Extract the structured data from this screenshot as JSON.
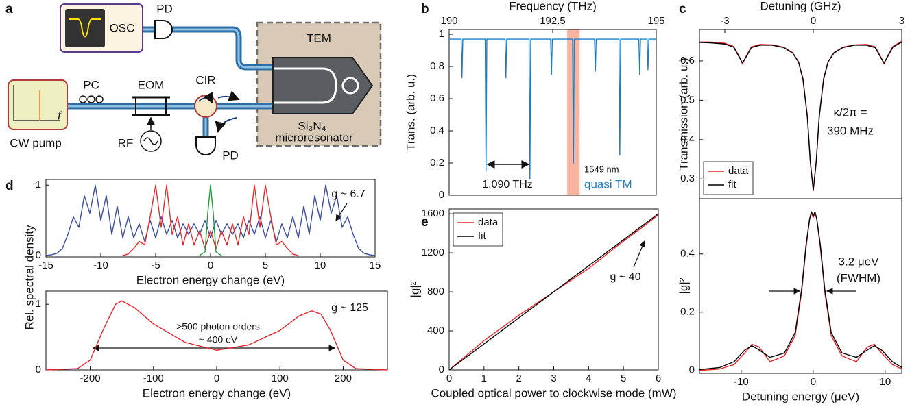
{
  "panel_labels": [
    "a",
    "b",
    "c",
    "d",
    "e"
  ],
  "diagram": {
    "pd_top": "PD",
    "osc": "OSC",
    "tem": "TEM",
    "pc": "PC",
    "eom": "EOM",
    "cir": "CIR",
    "material": "Si₃N₄",
    "resonator": "microresonator",
    "pump_axis": "f",
    "pump": "CW pump",
    "rf": "RF",
    "pd_bottom": "PD"
  },
  "chart_data": [
    {
      "type": "line",
      "x_label": "Frequency (THz)",
      "y_label": "Trans. (arb. u.)",
      "x_axis_side": "top",
      "xlim": [
        190,
        195
      ],
      "xticks": [
        190,
        192.5,
        195
      ],
      "ylim": [
        0,
        1.03
      ],
      "yticks": [
        0,
        0.2,
        0.4,
        0.6,
        0.8,
        1
      ],
      "highlight_x": [
        192.85,
        193.15
      ],
      "highlight_color": "#f6b5a0",
      "annotations": [
        "1.090 THz",
        "1549 nm",
        "quasi TM"
      ],
      "series": [
        {
          "color": "#1f7dc0",
          "x": [
            190,
            190.29,
            190.31,
            190.33,
            190.87,
            190.89,
            190.91,
            191.35,
            191.37,
            191.39,
            191.93,
            191.95,
            191.97,
            192.45,
            192.47,
            192.49,
            192.98,
            193.0,
            193.02,
            193.51,
            193.53,
            193.55,
            194.1,
            194.12,
            194.14,
            194.58,
            194.6,
            194.62,
            194.78,
            194.8,
            194.82,
            195
          ],
          "values": [
            0.97,
            0.97,
            0.73,
            0.97,
            0.97,
            0.15,
            0.97,
            0.97,
            0.73,
            0.97,
            0.97,
            0.1,
            0.97,
            0.97,
            0.75,
            0.97,
            0.97,
            0.2,
            0.97,
            0.97,
            0.77,
            0.97,
            0.97,
            0.25,
            0.97,
            0.97,
            0.75,
            0.97,
            0.97,
            0.78,
            0.97,
            0.97
          ]
        }
      ]
    },
    {
      "type": "line",
      "x_label": "Detuning (GHz)",
      "y_label": "Transmission (arb. u.)",
      "x_axis_side": "top",
      "xlim": [
        -3.86,
        3
      ],
      "xticks": [
        -3,
        0,
        3
      ],
      "ylim": [
        0.25,
        0.68
      ],
      "yticks": [
        0.3,
        0.4,
        0.5,
        0.6
      ],
      "annotations": [
        "κ/2π =",
        "390 MHz"
      ],
      "legend": "lower left",
      "series": [
        {
          "name": "data",
          "color": "#e8232a",
          "x": [
            -3.86,
            -3.5,
            -3,
            -2.7,
            -2.5,
            -2.4,
            -2.3,
            -2.1,
            -1.8,
            -1.4,
            -1,
            -0.7,
            -0.5,
            -0.35,
            -0.2,
            -0.1,
            0,
            0.1,
            0.2,
            0.35,
            0.5,
            0.7,
            1,
            1.4,
            1.8,
            2.1,
            2.3,
            2.4,
            2.5,
            2.7,
            3
          ],
          "values": [
            0.648,
            0.648,
            0.645,
            0.637,
            0.61,
            0.592,
            0.609,
            0.636,
            0.642,
            0.641,
            0.635,
            0.621,
            0.598,
            0.556,
            0.46,
            0.346,
            0.27,
            0.346,
            0.46,
            0.556,
            0.598,
            0.621,
            0.635,
            0.641,
            0.642,
            0.636,
            0.609,
            0.592,
            0.61,
            0.637,
            0.65
          ]
        },
        {
          "name": "fit",
          "color": "#000000",
          "x": [
            -3.86,
            -3.5,
            -3,
            -2.7,
            -2.5,
            -2.4,
            -2.3,
            -2.1,
            -1.8,
            -1.4,
            -1,
            -0.7,
            -0.5,
            -0.35,
            -0.2,
            -0.1,
            0,
            0.1,
            0.2,
            0.35,
            0.5,
            0.7,
            1,
            1.4,
            1.8,
            2.1,
            2.3,
            2.4,
            2.5,
            2.7,
            3
          ],
          "values": [
            0.647,
            0.646,
            0.643,
            0.635,
            0.608,
            0.595,
            0.607,
            0.634,
            0.64,
            0.64,
            0.634,
            0.62,
            0.597,
            0.553,
            0.456,
            0.342,
            0.272,
            0.342,
            0.456,
            0.553,
            0.597,
            0.62,
            0.634,
            0.64,
            0.64,
            0.634,
            0.607,
            0.595,
            0.608,
            0.635,
            0.648
          ]
        }
      ]
    },
    {
      "type": "line",
      "x_label": "Detuning energy (μeV)",
      "y_label": "|g|²",
      "xlim": [
        -15.8,
        12.3
      ],
      "xticks": [
        -10,
        0,
        10
      ],
      "ylim": [
        -0.01,
        0.59
      ],
      "yticks": [
        0,
        0.2,
        0.4
      ],
      "annotations": [
        "3.2 μeV",
        "(FWHM)"
      ],
      "series": [
        {
          "color": "#e8232a",
          "x": [
            -15.8,
            -13,
            -11,
            -9.5,
            -8.5,
            -7.5,
            -6,
            -4,
            -2.5,
            -1.6,
            -1,
            -0.5,
            -0.25,
            0,
            0.25,
            0.5,
            1,
            1.6,
            2.5,
            4,
            6,
            7.5,
            8.5,
            9.5,
            11,
            12.3
          ],
          "values": [
            0,
            0.005,
            0.02,
            0.06,
            0.09,
            0.08,
            0.03,
            0.05,
            0.12,
            0.27,
            0.42,
            0.52,
            0.54,
            0.525,
            0.54,
            0.52,
            0.42,
            0.27,
            0.12,
            0.05,
            0.03,
            0.08,
            0.09,
            0.06,
            0.02,
            0.005
          ]
        },
        {
          "color": "#000000",
          "x": [
            -15.8,
            -13,
            -11,
            -9.5,
            -8.5,
            -7.5,
            -6,
            -4,
            -2.5,
            -1.6,
            -1,
            -0.5,
            -0.25,
            0,
            0.25,
            0.5,
            1,
            1.6,
            2.5,
            4,
            6,
            7.5,
            8.5,
            9.5,
            11,
            12.3
          ],
          "values": [
            0.003,
            0.01,
            0.03,
            0.07,
            0.085,
            0.07,
            0.045,
            0.06,
            0.13,
            0.28,
            0.43,
            0.52,
            0.545,
            0.53,
            0.545,
            0.52,
            0.43,
            0.28,
            0.13,
            0.06,
            0.045,
            0.07,
            0.085,
            0.07,
            0.03,
            0.01
          ]
        }
      ]
    },
    {
      "type": "line",
      "x_label": "Electron energy change (eV)",
      "y_label": "Rel. spectral density",
      "xlim": [
        -15,
        15
      ],
      "xticks": [
        -15,
        -10,
        -5,
        0,
        5,
        10,
        15
      ],
      "ylim": [
        -0.02,
        1.08
      ],
      "yticks": [
        0,
        1
      ],
      "annotations": [
        "g ~ 6.7"
      ],
      "series": [
        {
          "color": "#3a4fa0",
          "x": [
            -15,
            -14.5,
            -14,
            -13.5,
            -13,
            -12.5,
            -12,
            -11.5,
            -11,
            -10.5,
            -10,
            -9.5,
            -9,
            -8.5,
            -8,
            -7.5,
            -7,
            -6.5,
            -6,
            -5.5,
            -5,
            -4.5,
            -4,
            -3.5,
            -3,
            -2.5,
            -2,
            -1.5,
            -1,
            -0.5,
            0,
            0.5,
            1,
            1.5,
            2,
            2.5,
            3,
            3.5,
            4,
            4.5,
            5,
            5.5,
            6,
            6.5,
            7,
            7.5,
            8,
            8.5,
            9,
            9.5,
            10,
            10.5,
            11,
            11.5,
            12,
            12.5,
            13,
            13.5,
            14,
            14.5,
            15
          ],
          "values": [
            0,
            0.01,
            0.03,
            0.1,
            0.3,
            0.55,
            0.4,
            0.85,
            0.6,
            1,
            0.5,
            0.85,
            0.3,
            0.7,
            0.25,
            0.55,
            0.25,
            0.45,
            0.2,
            0.5,
            0.25,
            0.55,
            0.3,
            0.5,
            0.25,
            0.45,
            0.3,
            0.45,
            0.3,
            0.5,
            0.25,
            0.5,
            0.3,
            0.45,
            0.3,
            0.45,
            0.25,
            0.5,
            0.3,
            0.55,
            0.25,
            0.5,
            0.2,
            0.45,
            0.25,
            0.55,
            0.25,
            0.7,
            0.3,
            0.85,
            0.5,
            1,
            0.6,
            0.85,
            0.4,
            0.55,
            0.3,
            0.1,
            0.03,
            0.01,
            0
          ]
        },
        {
          "color": "#e22a2a",
          "x": [
            -8,
            -7.5,
            -7,
            -6.5,
            -6,
            -5.5,
            -5,
            -4.5,
            -4,
            -3.5,
            -3,
            -2.5,
            -2,
            -1.5,
            -1,
            -0.5,
            0,
            0.5,
            1,
            1.5,
            2,
            2.5,
            3,
            3.5,
            4,
            4.5,
            5,
            5.5,
            6,
            6.5,
            7,
            7.5,
            8
          ],
          "values": [
            0,
            0.02,
            0.1,
            0.2,
            0.15,
            0.55,
            1,
            0.4,
            1,
            0.3,
            0.55,
            0.15,
            0.45,
            0.15,
            0.35,
            0.1,
            0.35,
            0.1,
            0.35,
            0.15,
            0.45,
            0.15,
            0.55,
            0.3,
            1,
            0.4,
            1,
            0.55,
            0.15,
            0.2,
            0.1,
            0.02,
            0
          ]
        },
        {
          "color": "#1a9a3a",
          "x": [
            -1,
            -0.5,
            -0.25,
            0,
            0.25,
            0.5,
            1
          ],
          "values": [
            0,
            0.05,
            0.6,
            1,
            0.6,
            0.05,
            0
          ]
        }
      ]
    },
    {
      "type": "line",
      "x_label": "Electron energy change (eV)",
      "xlim": [
        -270,
        270
      ],
      "xticks": [
        -200,
        -100,
        0,
        100,
        200
      ],
      "ylim": [
        0,
        1.2
      ],
      "yticks": [
        0,
        1
      ],
      "annotations": [
        "g ~ 125",
        ">500 photon orders",
        "~ 400 eV"
      ],
      "series": [
        {
          "color": "#e8232a",
          "x": [
            -270,
            -220,
            -200,
            -180,
            -160,
            -150,
            -130,
            -100,
            -50,
            0,
            50,
            100,
            130,
            150,
            165,
            180,
            200,
            220,
            270
          ],
          "values": [
            0,
            0.02,
            0.15,
            0.6,
            1,
            1.05,
            0.95,
            0.7,
            0.42,
            0.3,
            0.38,
            0.6,
            0.82,
            0.9,
            0.85,
            0.6,
            0.15,
            0.02,
            0
          ]
        }
      ]
    },
    {
      "type": "line",
      "x_label": "Coupled optical power to clockwise mode (mW)",
      "y_label": "|g|²",
      "xlim": [
        0,
        6
      ],
      "xticks": [
        0,
        1,
        2,
        3,
        4,
        5,
        6
      ],
      "ylim": [
        0,
        1650
      ],
      "yticks": [
        0,
        400,
        800,
        1200,
        1600
      ],
      "annotations": [
        "g ~ 40"
      ],
      "legend": "upper left",
      "series": [
        {
          "name": "data",
          "color": "#e8232a",
          "x": [
            0,
            0.5,
            1,
            1.5,
            2,
            2.5,
            3,
            3.5,
            4,
            4.5,
            5,
            5.5,
            6
          ],
          "values": [
            0,
            150,
            300,
            430,
            560,
            680,
            800,
            920,
            1040,
            1180,
            1320,
            1450,
            1590
          ]
        },
        {
          "name": "fit",
          "color": "#000000",
          "x": [
            0,
            6
          ],
          "values": [
            0,
            1600
          ]
        }
      ]
    }
  ]
}
